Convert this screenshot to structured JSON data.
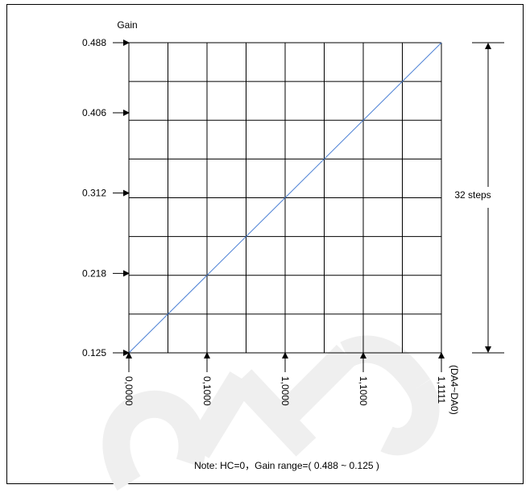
{
  "chart_data": {
    "type": "line",
    "ylabel": "Gain",
    "xlabel": "(DA4~DA0)",
    "x_tick_labels": [
      "0,0000",
      "0,1000",
      "1,0000",
      "1,1000",
      "1,1111"
    ],
    "y_tick_labels": [
      "0.488",
      "0.406",
      "0.312",
      "0.218",
      "0.125"
    ],
    "y_tick_values": [
      0.488,
      0.406,
      0.312,
      0.218,
      0.125
    ],
    "ylim": [
      0.125,
      0.488
    ],
    "xlim": [
      0,
      31
    ],
    "grid": true,
    "grid_divisions": {
      "x": 8,
      "y": 8
    },
    "series": [
      {
        "x": [
          0,
          31
        ],
        "y": [
          0.125,
          0.488
        ],
        "color": "#4a7fd4"
      }
    ],
    "annotation": "32 steps",
    "note": "Note: HC=0，Gain range=( 0.488 ~ 0.125 )"
  },
  "colors": {
    "line": "#4a7fd4",
    "grid": "#000000",
    "watermark": "#eeeeee"
  }
}
